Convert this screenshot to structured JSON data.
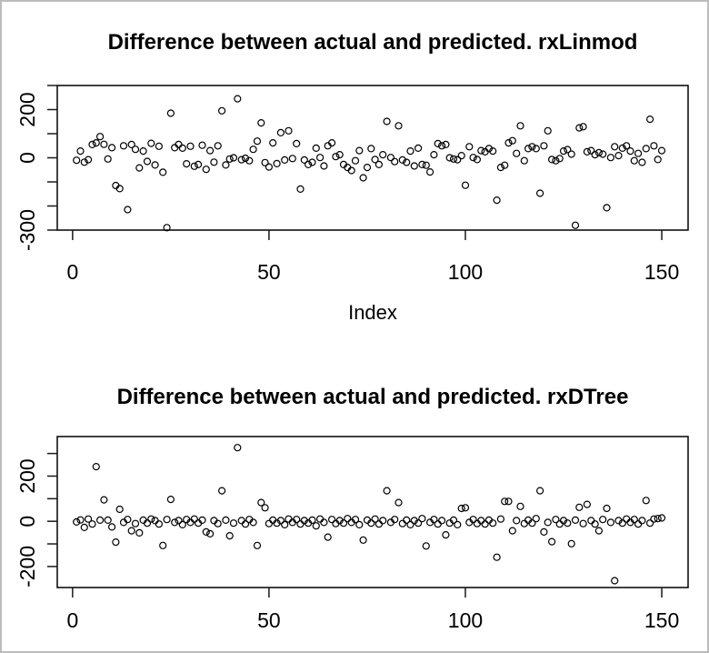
{
  "window": {
    "background_color": "#ffffff",
    "border_color": "#bcbcbc",
    "plot_line_color": "#000000"
  },
  "chart_data": [
    {
      "type": "scatter",
      "title": "Difference between actual and predicted. rxLinmod",
      "xlabel": "Index",
      "ylabel": "",
      "marker": "open-circle",
      "grid": false,
      "legend": "none",
      "x_ticks": [
        0,
        50,
        100,
        150
      ],
      "y_ticks": [
        300,
        200,
        100,
        0,
        -100,
        -200,
        -300
      ],
      "y_labeled_ticks": [
        200,
        0,
        -300
      ],
      "xlim": [
        -3.9,
        156.7
      ],
      "ylim": [
        -300,
        300
      ],
      "x_description": "index 1..150",
      "values": [
        -10,
        28,
        -18,
        -8,
        55,
        62,
        88,
        56,
        -5,
        42,
        -115,
        -128,
        50,
        -215,
        55,
        35,
        -42,
        28,
        -15,
        60,
        -30,
        48,
        -60,
        -290,
        185,
        42,
        55,
        40,
        -25,
        48,
        -35,
        -28,
        52,
        -48,
        30,
        -18,
        50,
        195,
        -30,
        -5,
        0,
        245,
        -8,
        -2,
        -12,
        35,
        69,
        145,
        -20,
        -38,
        62,
        -24,
        104,
        -9,
        112,
        -3,
        59,
        -130,
        -9,
        -28,
        -19,
        40,
        1,
        -34,
        50,
        62,
        5,
        13,
        -28,
        -40,
        -53,
        -12,
        30,
        -83,
        -40,
        38,
        -7,
        -28,
        13,
        151,
        1,
        -16,
        133,
        -9,
        -19,
        28,
        -34,
        40,
        -28,
        -31,
        -59,
        13,
        59,
        50,
        55,
        0,
        -5,
        -8,
        9,
        -114,
        46,
        1,
        -7,
        30,
        25,
        38,
        28,
        -176,
        -40,
        -31,
        62,
        71,
        18,
        133,
        -12,
        38,
        46,
        38,
        -147,
        50,
        112,
        -7,
        -12,
        -3,
        28,
        34,
        15,
        -280,
        124,
        129,
        25,
        30,
        13,
        21,
        15,
        -207,
        1,
        46,
        9,
        40,
        50,
        28,
        -12,
        18,
        -19,
        38,
        160,
        50,
        -7,
        30
      ]
    },
    {
      "type": "scatter",
      "title": "Difference between actual and predicted. rxDTree",
      "xlabel": "",
      "ylabel": "",
      "marker": "open-circle",
      "grid": false,
      "legend": "none",
      "x_ticks": [
        0,
        50,
        100,
        150
      ],
      "y_ticks": [
        300,
        200,
        100,
        0,
        -100,
        -200
      ],
      "y_labeled_ticks": [
        200,
        0,
        -200
      ],
      "xlim": [
        -3.9,
        156.7
      ],
      "ylim": [
        -293,
        375
      ],
      "x_description": "index 1..150",
      "values": [
        -3,
        6,
        -27,
        10,
        -12,
        242,
        5,
        95,
        5,
        -25,
        -92,
        53,
        -5,
        8,
        -42,
        -10,
        -51,
        5,
        -8,
        10,
        3,
        -12,
        -107,
        8,
        97,
        -5,
        3,
        -15,
        8,
        -5,
        10,
        -8,
        5,
        -47,
        -55,
        3,
        -10,
        135,
        5,
        -64,
        -8,
        326,
        3,
        -12,
        8,
        -5,
        -107,
        83,
        60,
        -10,
        5,
        -8,
        3,
        -15,
        10,
        -5,
        8,
        -12,
        3,
        -8,
        5,
        -20,
        10,
        -5,
        -70,
        8,
        -10,
        3,
        -8,
        12,
        -5,
        8,
        -15,
        -83,
        5,
        -8,
        10,
        -12,
        3,
        135,
        -5,
        8,
        83,
        -10,
        5,
        -15,
        3,
        -8,
        12,
        -109,
        -5,
        8,
        -12,
        3,
        -60,
        -8,
        5,
        -15,
        57,
        60,
        -5,
        8,
        -10,
        3,
        -12,
        5,
        -8,
        -159,
        10,
        88,
        88,
        -42,
        3,
        66,
        -10,
        5,
        -8,
        12,
        135,
        -47,
        -5,
        -90,
        8,
        -12,
        3,
        -8,
        -99,
        5,
        62,
        -10,
        75,
        3,
        -12,
        -42,
        8,
        57,
        -5,
        -263,
        3,
        -8,
        10,
        -5,
        8,
        -12,
        3,
        92,
        -8,
        10,
        12,
        15
      ]
    }
  ]
}
